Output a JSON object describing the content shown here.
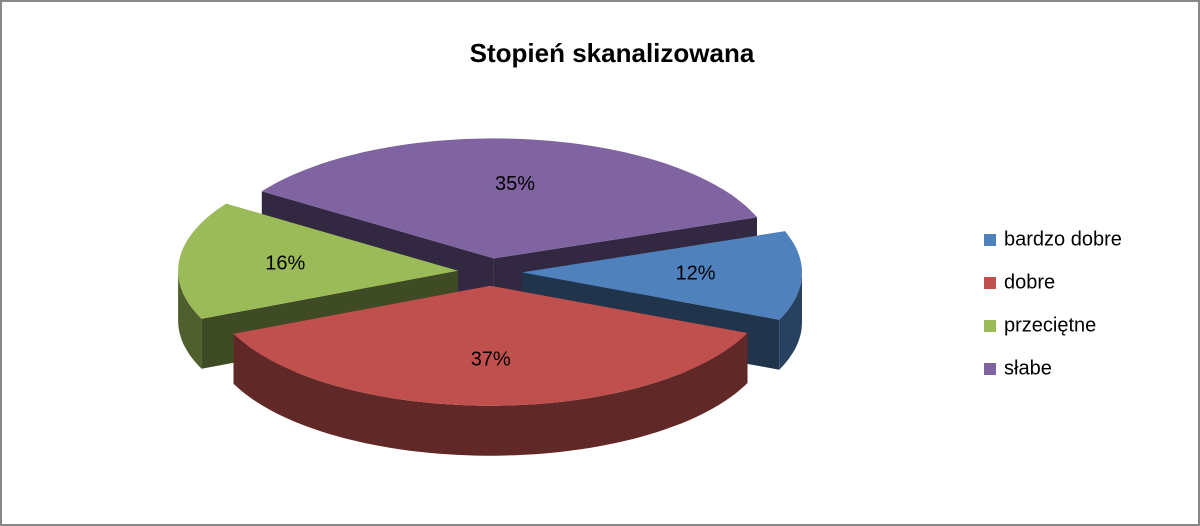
{
  "chart_data": {
    "type": "pie",
    "title": "Stopień skanalizowana",
    "categories": [
      "bardzo dobre",
      "dobre",
      "przeciętne",
      "słabe"
    ],
    "values": [
      12,
      37,
      16,
      35
    ],
    "value_labels": [
      "12%",
      "37%",
      "16%",
      "35%"
    ],
    "colors": [
      "#4f81bd",
      "#c0504d",
      "#9bbb59",
      "#8064a2"
    ],
    "legend": "right"
  }
}
